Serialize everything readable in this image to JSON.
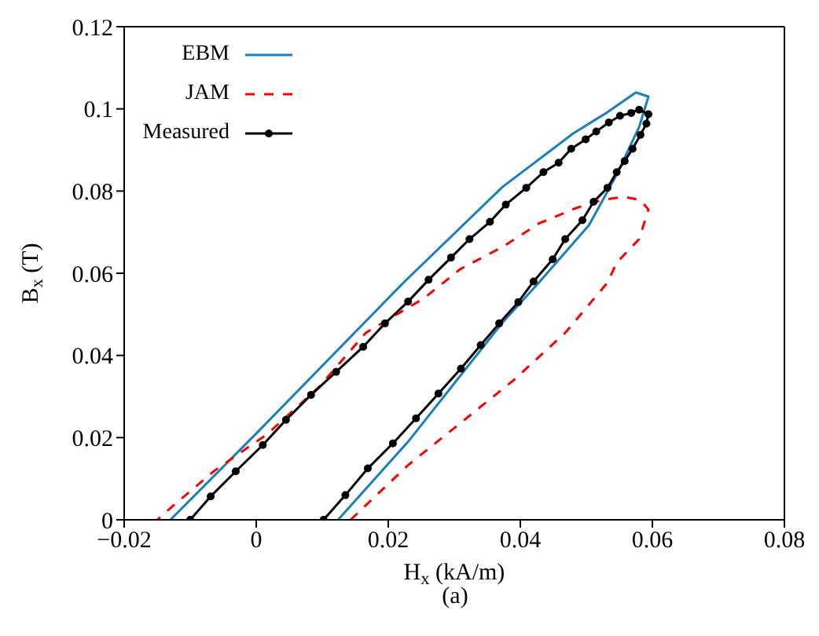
{
  "chart_data": {
    "type": "line",
    "xlabel": "H$_{x}$ (kA/m)",
    "ylabel": "B$_{x}$ (T)",
    "annotations": [
      "(a)"
    ],
    "xlim": [
      -0.02,
      0.08
    ],
    "xticks": [
      {
        "value": -0.02,
        "label": "−0.02"
      },
      0,
      0.02,
      0.04,
      0.06,
      0.08
    ],
    "ylim": [
      0,
      0.12
    ],
    "yticks": [
      0,
      0.02,
      0.04,
      0.06,
      0.08,
      0.1,
      0.12
    ],
    "grid": false,
    "legend": "top left",
    "series": [
      {
        "name": "EBM",
        "color": "#1a7fbd",
        "line_style": "solid",
        "marker": "none",
        "x": [
          0.0124,
          0.023,
          0.0373,
          0.0428,
          0.0504,
          0.0546,
          0.058,
          0.0594,
          0.0575,
          0.053,
          0.048,
          0.0373,
          0.0223,
          0.0,
          -0.013
        ],
        "values": [
          0,
          0.019,
          0.048,
          0.0577,
          0.0717,
          0.084,
          0.0956,
          0.103,
          0.104,
          0.099,
          0.094,
          0.081,
          0.0577,
          0.021,
          0
        ]
      },
      {
        "name": "JAM",
        "color": "#ff0000",
        "line_style": "dashed",
        "marker": "none",
        "x": [
          0.0143,
          0.023,
          0.0309,
          0.039,
          0.0468,
          0.0532,
          0.0546,
          0.058,
          0.0594,
          0.0582,
          0.0556,
          0.0523,
          0.0485,
          0.0428,
          0.0373,
          0.0309,
          0.0254,
          0.0166,
          0.0095,
          0.0017,
          -0.0062,
          -0.0126,
          -0.015
        ],
        "values": [
          0,
          0.0133,
          0.0235,
          0.034,
          0.0455,
          0.0577,
          0.0626,
          0.0683,
          0.0755,
          0.0778,
          0.0786,
          0.0778,
          0.0759,
          0.0721,
          0.0664,
          0.061,
          0.0539,
          0.0455,
          0.0323,
          0.0209,
          0.0121,
          0.0034,
          0
        ]
      },
      {
        "name": "Measured",
        "color": "#000000",
        "line_style": "solid",
        "marker": "circle",
        "x": [
          0.0102,
          0.0135,
          0.0169,
          0.0207,
          0.0242,
          0.0276,
          0.031,
          0.034,
          0.0368,
          0.0397,
          0.042,
          0.0449,
          0.0468,
          0.0494,
          0.0511,
          0.0532,
          0.0546,
          0.0558,
          0.057,
          0.0582,
          0.0591,
          0.0594,
          0.058,
          0.0568,
          0.0551,
          0.0534,
          0.0515,
          0.0499,
          0.0477,
          0.0458,
          0.0435,
          0.0409,
          0.0378,
          0.0354,
          0.0323,
          0.0295,
          0.0261,
          0.023,
          0.0195,
          0.0162,
          0.0121,
          0.0083,
          0.0045,
          0.001,
          -0.0031,
          -0.0069,
          -0.01
        ],
        "values": [
          0,
          0.006,
          0.0125,
          0.0186,
          0.0247,
          0.0307,
          0.0368,
          0.0425,
          0.0478,
          0.053,
          0.058,
          0.0634,
          0.0683,
          0.0729,
          0.0774,
          0.0808,
          0.0846,
          0.0873,
          0.0903,
          0.0937,
          0.0964,
          0.0987,
          0.0998,
          0.099,
          0.0983,
          0.0967,
          0.0945,
          0.0926,
          0.0903,
          0.0869,
          0.0846,
          0.0808,
          0.0767,
          0.0725,
          0.0683,
          0.0638,
          0.0584,
          0.0531,
          0.0478,
          0.0421,
          0.036,
          0.0304,
          0.0243,
          0.0182,
          0.0118,
          0.0057,
          0
        ]
      }
    ]
  }
}
